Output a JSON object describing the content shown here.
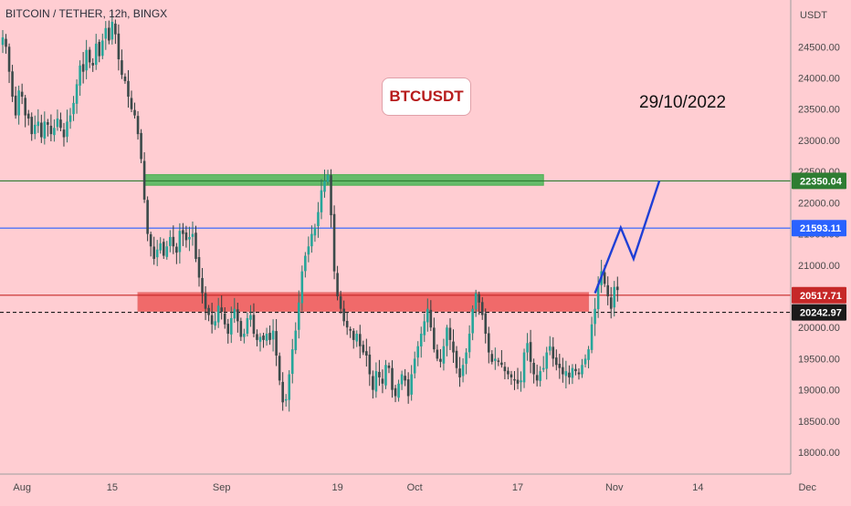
{
  "header": {
    "symbol_line": "BITCOIN / TETHER, 12h, BINGX"
  },
  "annotations": {
    "symbol_box": "BTCUSDT",
    "date": "29/10/2022"
  },
  "colors": {
    "background": "#ffcdd2",
    "candle_up": "#26a69a",
    "candle_down": "#ef5350",
    "candle_neutral": "#3b4a4a",
    "green_line": "#2e7d32",
    "blue_line": "#2962ff",
    "red_line": "#c62828",
    "green_zone": "#66bb6a",
    "red_zone": "#f06a6a",
    "projection": "#1f3fd6",
    "last_price": "#1a1a1a"
  },
  "chart_data": {
    "type": "candlestick",
    "title": "BITCOIN / TETHER, 12h, BINGX",
    "currency_label": "USDT",
    "x_ticks": [
      "Aug",
      "15",
      "Sep",
      "19",
      "Oct",
      "17",
      "Nov",
      "14",
      "Dec"
    ],
    "y_ticks": [
      "18000.00",
      "18500.00",
      "19000.00",
      "19500.00",
      "20000.00",
      "20500.00",
      "21000.00",
      "21500.00",
      "22000.00",
      "22500.00",
      "23000.00",
      "23500.00",
      "24000.00",
      "24500.00"
    ],
    "ylim": [
      17650,
      25250
    ],
    "horizontal_levels": [
      {
        "price": 22350.04,
        "label": "22350.04",
        "color": "#2e7d32",
        "style": "solid"
      },
      {
        "price": 21593.11,
        "label": "21593.11",
        "color": "#2962ff",
        "style": "solid"
      },
      {
        "price": 20517.71,
        "label": "20517.71",
        "color": "#c62828",
        "style": "solid"
      },
      {
        "price": 20242.97,
        "label": "20242.97",
        "color": "#1a1a1a",
        "style": "dashed"
      }
    ],
    "zones": [
      {
        "name": "resistance",
        "date_from": "2022-08-20",
        "date_to": "2022-10-21",
        "price_low": 22280,
        "price_high": 22450
      },
      {
        "name": "support",
        "date_from": "2022-08-19",
        "date_to": "2022-10-28",
        "price_low": 20260,
        "price_high": 20560
      }
    ],
    "projection": [
      {
        "date": "2022-10-29",
        "price": 20550
      },
      {
        "date": "2022-11-02",
        "price": 21600
      },
      {
        "date": "2022-11-04",
        "price": 21100
      },
      {
        "date": "2022-11-08",
        "price": 22350
      }
    ],
    "closes": [
      24650,
      24500,
      24100,
      23700,
      23400,
      23800,
      23700,
      23400,
      23350,
      23100,
      23250,
      23300,
      23050,
      23300,
      23250,
      23100,
      23200,
      23350,
      23200,
      23050,
      23300,
      23400,
      23600,
      23900,
      24200,
      24100,
      24450,
      24250,
      24200,
      24550,
      24350,
      24600,
      24800,
      24600,
      24900,
      24700,
      24300,
      24050,
      23950,
      23700,
      23500,
      23400,
      23100,
      22700,
      22050,
      21500,
      21300,
      21100,
      21250,
      21350,
      21150,
      21300,
      21450,
      21300,
      21200,
      21550,
      21500,
      21400,
      21450,
      21500,
      21100,
      20800,
      20550,
      20300,
      20200,
      20050,
      20100,
      20350,
      20250,
      20050,
      19900,
      20150,
      20300,
      20100,
      19850,
      19900,
      20150,
      20200,
      19900,
      19800,
      19850,
      19800,
      19900,
      19800,
      19950,
      19550,
      19150,
      18800,
      18850,
      19250,
      19650,
      19950,
      20400,
      20900,
      21150,
      21300,
      21500,
      21600,
      21850,
      22200,
      22350,
      22450,
      21800,
      20900,
      20500,
      20300,
      20100,
      20000,
      19950,
      19800,
      19900,
      19700,
      19600,
      19550,
      19250,
      19000,
      19300,
      19200,
      19100,
      19400,
      19350,
      19000,
      18900,
      19100,
      19250,
      19150,
      18900,
      19250,
      19500,
      19700,
      19900,
      20100,
      20300,
      20000,
      19650,
      19500,
      19450,
      19700,
      20000,
      19800,
      19600,
      19350,
      19200,
      19400,
      19600,
      19900,
      20300,
      20550,
      20400,
      20200,
      19900,
      19600,
      19450,
      19500,
      19450,
      19400,
      19300,
      19250,
      19200,
      19150,
      19100,
      19150,
      19600,
      19750,
      19450,
      19250,
      19150,
      19300,
      19350,
      19600,
      19700,
      19500,
      19400,
      19350,
      19250,
      19300,
      19200,
      19350,
      19300,
      19250,
      19400,
      19500,
      19650,
      20050,
      20300,
      20700,
      20900,
      20700,
      20500,
      20300,
      20650,
      20600
    ]
  }
}
